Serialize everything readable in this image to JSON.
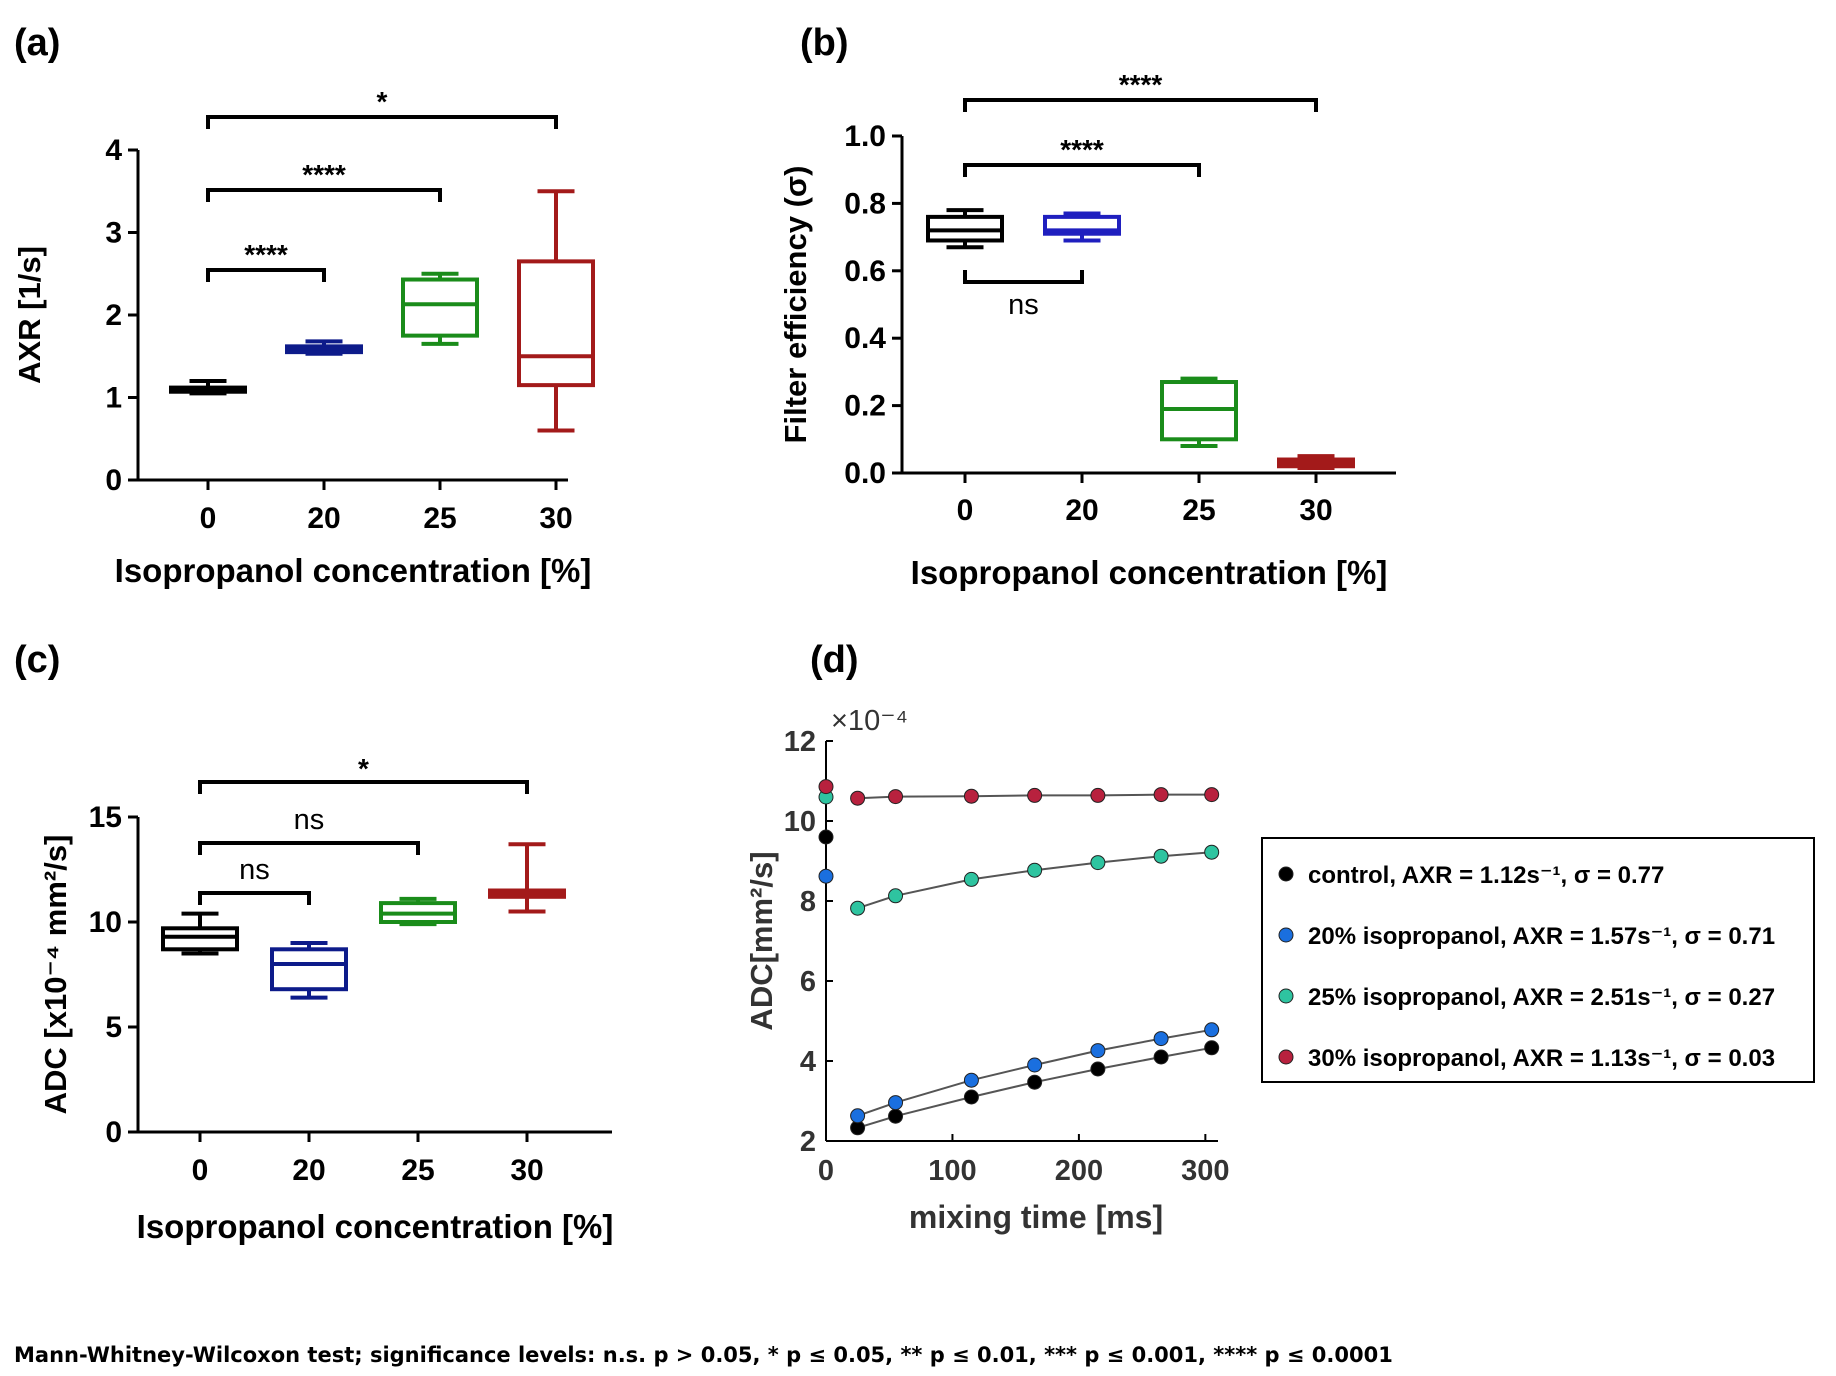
{
  "footnote": "Mann-Whitney-Wilcoxon test; significance levels: n.s. p > 0.05, * p ≤ 0.05, ** p ≤ 0.01, *** p ≤ 0.001, **** p ≤ 0.0001",
  "chart_data": [
    {
      "id": "a",
      "panel_label": "(a)",
      "type": "box",
      "xlabel": "Isopropanol concentration [%]",
      "ylabel": "AXR [1/s]",
      "categories": [
        "0",
        "20",
        "25",
        "30"
      ],
      "ylim": [
        0,
        4
      ],
      "yticks": [
        "0",
        "1",
        "2",
        "3",
        "4"
      ],
      "series": [
        {
          "name": "0",
          "color": "#000000",
          "min": 1.05,
          "q1": 1.07,
          "median": 1.1,
          "q3": 1.12,
          "max": 1.2
        },
        {
          "name": "20",
          "color": "#0d1b8a",
          "min": 1.53,
          "q1": 1.55,
          "median": 1.59,
          "q3": 1.62,
          "max": 1.68
        },
        {
          "name": "25",
          "color": "#1a8c1a",
          "min": 1.65,
          "q1": 1.75,
          "median": 2.13,
          "q3": 2.43,
          "max": 2.5
        },
        {
          "name": "30",
          "color": "#a31a1a",
          "min": 0.6,
          "q1": 1.15,
          "median": 1.5,
          "q3": 2.65,
          "max": 3.5
        }
      ],
      "significance": [
        {
          "from": 0,
          "to": 1,
          "label": "****"
        },
        {
          "from": 0,
          "to": 2,
          "label": "****"
        },
        {
          "from": 0,
          "to": 3,
          "label": "*"
        }
      ]
    },
    {
      "id": "b",
      "panel_label": "(b)",
      "type": "box",
      "xlabel": "Isopropanol concentration [%]",
      "ylabel": "Filter efficiency (σ)",
      "categories": [
        "0",
        "20",
        "25",
        "30"
      ],
      "ylim": [
        0,
        1
      ],
      "yticks": [
        "0.0",
        "0.2",
        "0.4",
        "0.6",
        "0.8",
        "1.0"
      ],
      "series": [
        {
          "name": "0",
          "color": "#000000",
          "min": 0.67,
          "q1": 0.69,
          "median": 0.72,
          "q3": 0.76,
          "max": 0.78
        },
        {
          "name": "20",
          "color": "#1f1fbf",
          "min": 0.69,
          "q1": 0.71,
          "median": 0.72,
          "q3": 0.76,
          "max": 0.77
        },
        {
          "name": "25",
          "color": "#1a8c1a",
          "min": 0.08,
          "q1": 0.1,
          "median": 0.19,
          "q3": 0.27,
          "max": 0.28
        },
        {
          "name": "30",
          "color": "#a31a1a",
          "min": 0.015,
          "q1": 0.02,
          "median": 0.03,
          "q3": 0.04,
          "max": 0.05
        }
      ],
      "significance": [
        {
          "from": 0,
          "to": 1,
          "label": "ns",
          "below": true
        },
        {
          "from": 0,
          "to": 2,
          "label": "****"
        },
        {
          "from": 0,
          "to": 3,
          "label": "****"
        }
      ]
    },
    {
      "id": "c",
      "panel_label": "(c)",
      "type": "box",
      "xlabel": "Isopropanol concentration [%]",
      "ylabel": "ADC [x10⁻⁴ mm²/s]",
      "categories": [
        "0",
        "20",
        "25",
        "30"
      ],
      "ylim": [
        0,
        15
      ],
      "yticks": [
        "0",
        "5",
        "10",
        "15"
      ],
      "series": [
        {
          "name": "0",
          "color": "#000000",
          "min": 8.5,
          "q1": 8.7,
          "median": 9.3,
          "q3": 9.7,
          "max": 10.4
        },
        {
          "name": "20",
          "color": "#0d1b8a",
          "min": 6.4,
          "q1": 6.8,
          "median": 8.0,
          "q3": 8.7,
          "max": 9.0
        },
        {
          "name": "25",
          "color": "#1a8c1a",
          "min": 9.9,
          "q1": 10.0,
          "median": 10.4,
          "q3": 10.9,
          "max": 11.1
        },
        {
          "name": "30",
          "color": "#a31a1a",
          "min": 10.5,
          "q1": 11.2,
          "median": 11.35,
          "q3": 11.5,
          "max": 13.7
        }
      ],
      "significance": [
        {
          "from": 0,
          "to": 1,
          "label": "ns"
        },
        {
          "from": 0,
          "to": 2,
          "label": "ns"
        },
        {
          "from": 0,
          "to": 3,
          "label": "*"
        }
      ]
    },
    {
      "id": "d",
      "panel_label": "(d)",
      "type": "scatter",
      "xlabel": "mixing time [ms]",
      "ylabel": "ADC[mm²/s]",
      "y_multiplier": "×10⁻⁴",
      "xlim": [
        0,
        310
      ],
      "ylim": [
        2,
        12
      ],
      "xticks": [
        "0",
        "100",
        "200",
        "300"
      ],
      "yticks": [
        "2",
        "4",
        "6",
        "8",
        "10",
        "12"
      ],
      "series": [
        {
          "name": "control",
          "legend": "control, AXR = 1.12s⁻¹, σ = 0.77",
          "color": "#000000",
          "x": [
            0,
            25,
            55,
            115,
            165,
            215,
            265,
            305
          ],
          "y": [
            9.6,
            2.33,
            2.62,
            3.1,
            3.47,
            3.8,
            4.1,
            4.33
          ]
        },
        {
          "name": "20% isopropanol",
          "legend": "20% isopropanol, AXR = 1.57s⁻¹, σ = 0.71",
          "color": "#1a6fdf",
          "x": [
            0,
            25,
            55,
            115,
            165,
            215,
            265,
            305
          ],
          "y": [
            8.62,
            2.63,
            2.96,
            3.52,
            3.9,
            4.26,
            4.56,
            4.78
          ]
        },
        {
          "name": "25% isopropanol",
          "legend": "25% isopropanol, AXR = 2.51s⁻¹, σ = 0.27",
          "color": "#2ec4a0",
          "x": [
            0,
            25,
            55,
            115,
            165,
            215,
            265,
            305
          ],
          "y": [
            10.6,
            7.82,
            8.13,
            8.54,
            8.77,
            8.96,
            9.12,
            9.22
          ]
        },
        {
          "name": "30% isopropanol",
          "legend": "30% isopropanol, AXR = 1.13s⁻¹, σ = 0.03",
          "color": "#b8213e",
          "x": [
            0,
            25,
            55,
            115,
            165,
            215,
            265,
            305
          ],
          "y": [
            10.86,
            10.57,
            10.61,
            10.62,
            10.64,
            10.64,
            10.66,
            10.66
          ]
        }
      ]
    }
  ]
}
